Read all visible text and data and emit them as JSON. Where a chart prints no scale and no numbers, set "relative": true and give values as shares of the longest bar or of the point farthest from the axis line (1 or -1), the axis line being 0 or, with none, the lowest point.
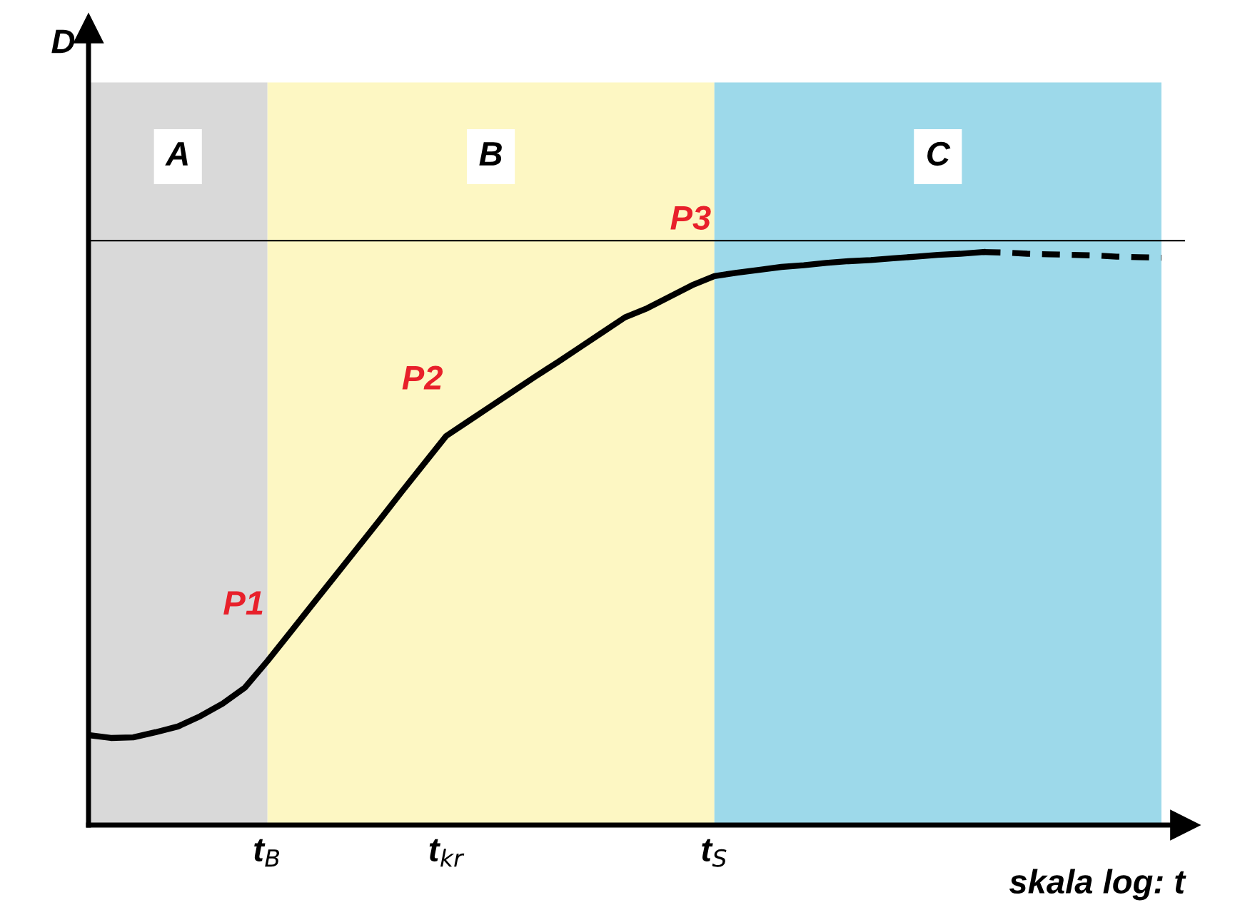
{
  "chart_data": {
    "type": "line",
    "relative": true,
    "xlabel": "skala log: t",
    "categories": [
      null,
      null,
      null,
      null,
      null,
      null,
      null,
      null,
      "t$_{B}$",
      null,
      null,
      null,
      null,
      null,
      null,
      null,
      "t$_{kr}$",
      null,
      null,
      null,
      null,
      null,
      null,
      null,
      null,
      null,
      null,
      null,
      "t$_{S}$",
      null,
      null,
      null,
      null,
      null,
      null,
      null,
      null,
      null,
      null,
      null,
      null,
      null,
      null,
      null,
      null,
      null,
      null,
      null,
      null
    ],
    "series": [
      {
        "color": "#000000",
        "line_style": "solid",
        "values": [
          0.157,
          0.152,
          0.153,
          0.162,
          0.172,
          0.19,
          0.212,
          0.24,
          0.286,
          0.335,
          0.384,
          0.433,
          0.482,
          0.531,
          0.581,
          0.63,
          0.679,
          0.705,
          0.731,
          0.757,
          0.783,
          0.808,
          0.834,
          0.86,
          0.886,
          0.902,
          0.922,
          0.942,
          0.958,
          0.964,
          0.969,
          0.974,
          0.977,
          0.981,
          0.984,
          0.986,
          0.989,
          0.992,
          0.995,
          0.997,
          1.0,
          null,
          null,
          null,
          null,
          null,
          null,
          null,
          null
        ]
      },
      {
        "color": "#000000",
        "line_style": "dashed",
        "values": [
          null,
          null,
          null,
          null,
          null,
          null,
          null,
          null,
          null,
          null,
          null,
          null,
          null,
          null,
          null,
          null,
          null,
          null,
          null,
          null,
          null,
          null,
          null,
          null,
          null,
          null,
          null,
          null,
          null,
          null,
          null,
          null,
          null,
          null,
          null,
          null,
          null,
          null,
          null,
          null,
          1.0,
          0.999,
          0.997,
          0.996,
          0.995,
          0.994,
          0.992,
          0.991,
          0.99
        ]
      }
    ],
    "bands": [
      {
        "axis": "x",
        "from": "t$_{B}$",
        "to": "t$_{S}$",
        "label": "B",
        "color": "#fdf7c3"
      }
    ],
    "ref_lines": [
      {
        "axis": "y",
        "value": 1.02,
        "color": "#000000"
      }
    ],
    "annotations": [
      "D",
      "A",
      "C",
      {
        "text": "P1",
        "x": "t$_{B}$",
        "y": 0.286
      },
      {
        "text": "P2",
        "x": "t$_{kr}$",
        "y": 0.679
      },
      {
        "text": "P3",
        "x": "t$_{S}$",
        "y": 0.958
      }
    ],
    "grid": false
  }
}
